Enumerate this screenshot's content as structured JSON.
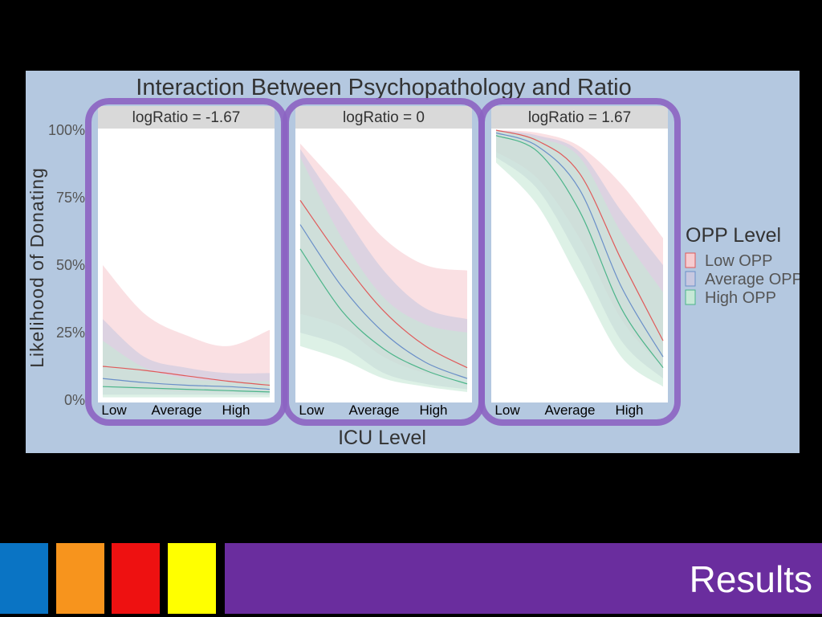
{
  "slide": {
    "footer_title": "Results",
    "accent_colors": [
      "#0a74c4",
      "#f7941d",
      "#ee1111",
      "#ffff00",
      "#6a2d9e"
    ]
  },
  "chart_data": {
    "type": "line",
    "title": "Interaction Between Psychopathology and Ratio",
    "xlabel": "ICU Level",
    "ylabel": "Likelihood of Donating",
    "yticks": [
      "0%",
      "25%",
      "50%",
      "75%",
      "100%"
    ],
    "ylim": [
      0,
      100
    ],
    "categories": [
      "Low",
      "Average",
      "High"
    ],
    "grid": false,
    "legend": {
      "title": "OPP Level",
      "position": "right",
      "entries": [
        "Low OPP",
        "Average OPP",
        "High OPP"
      ]
    },
    "series_colors": {
      "Low OPP": "#e05a5a",
      "Average OPP": "#6a8fc8",
      "High OPP": "#4cb58a"
    },
    "band_colors": {
      "Low OPP": "#f6ccd0",
      "Average OPP": "#c8c8e0",
      "High OPP": "#c6e8d6"
    },
    "panels": [
      {
        "label": "logRatio = -1.67",
        "series": [
          {
            "name": "Low OPP",
            "x": [
              0,
              0.25,
              0.5,
              0.75,
              1
            ],
            "values": [
              12.5,
              11,
              9,
              7,
              5.5
            ],
            "lower": [
              5,
              4,
              3,
              3,
              3
            ],
            "upper": [
              50,
              32,
              24,
              20,
              26
            ]
          },
          {
            "name": "Average OPP",
            "x": [
              0,
              0.25,
              0.5,
              0.75,
              1
            ],
            "values": [
              8,
              6.5,
              5.5,
              5,
              4
            ],
            "lower": [
              2,
              2,
              2,
              2,
              2
            ],
            "upper": [
              30,
              16,
              12,
              10,
              10
            ]
          },
          {
            "name": "High OPP",
            "x": [
              0,
              0.25,
              0.5,
              0.75,
              1
            ],
            "values": [
              5,
              4.5,
              4,
              3.5,
              3
            ],
            "lower": [
              1,
              1,
              1,
              1,
              1
            ],
            "upper": [
              22,
              12,
              8,
              7,
              7
            ]
          }
        ]
      },
      {
        "label": "logRatio = 0",
        "series": [
          {
            "name": "Low OPP",
            "x": [
              0,
              0.25,
              0.5,
              0.75,
              1
            ],
            "values": [
              74,
              52,
              33,
              20,
              12
            ],
            "lower": [
              32,
              27,
              16,
              10,
              8
            ],
            "upper": [
              95,
              78,
              60,
              50,
              48
            ]
          },
          {
            "name": "Average OPP",
            "x": [
              0,
              0.25,
              0.5,
              0.75,
              1
            ],
            "values": [
              65,
              42,
              25,
              14,
              8
            ],
            "lower": [
              25,
              20,
              10,
              6,
              4
            ],
            "upper": [
              93,
              70,
              48,
              34,
              30
            ]
          },
          {
            "name": "High OPP",
            "x": [
              0,
              0.25,
              0.5,
              0.75,
              1
            ],
            "values": [
              56,
              33,
              19,
              11,
              6
            ],
            "lower": [
              20,
              15,
              8,
              5,
              3
            ],
            "upper": [
              90,
              60,
              38,
              28,
              25
            ]
          }
        ]
      },
      {
        "label": "logRatio = 1.67",
        "series": [
          {
            "name": "Low OPP",
            "x": [
              0,
              0.25,
              0.5,
              0.75,
              1
            ],
            "values": [
              100,
              96,
              84,
              52,
              22
            ],
            "lower": [
              92,
              82,
              60,
              30,
              12
            ],
            "upper": [
              100,
              99,
              94,
              80,
              60
            ]
          },
          {
            "name": "Average OPP",
            "x": [
              0,
              0.25,
              0.5,
              0.75,
              1
            ],
            "values": [
              99,
              94,
              78,
              42,
              16
            ],
            "lower": [
              90,
              78,
              52,
              22,
              8
            ],
            "upper": [
              100,
              98,
              92,
              70,
              50
            ]
          },
          {
            "name": "High OPP",
            "x": [
              0,
              0.25,
              0.5,
              0.75,
              1
            ],
            "values": [
              98,
              92,
              70,
              34,
              12
            ],
            "lower": [
              88,
              72,
              44,
              16,
              5
            ],
            "upper": [
              100,
              97,
              90,
              62,
              40
            ]
          }
        ]
      }
    ]
  }
}
